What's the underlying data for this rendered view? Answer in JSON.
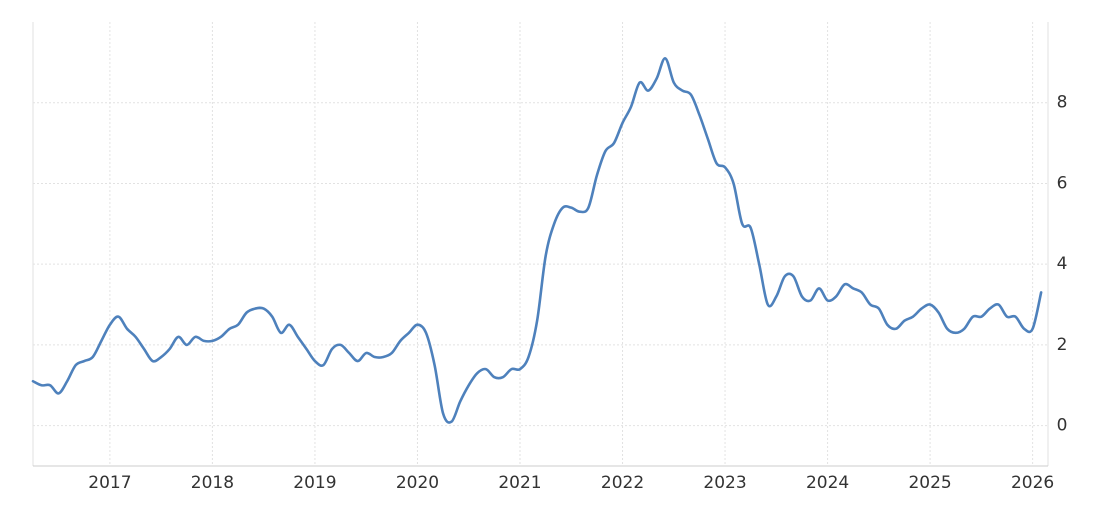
{
  "chart_data": {
    "type": "line",
    "x": [
      2016.25,
      2016.333,
      2016.417,
      2016.5,
      2016.583,
      2016.667,
      2016.75,
      2016.833,
      2016.917,
      2017.0,
      2017.083,
      2017.167,
      2017.25,
      2017.333,
      2017.417,
      2017.5,
      2017.583,
      2017.667,
      2017.75,
      2017.833,
      2017.917,
      2018.0,
      2018.083,
      2018.167,
      2018.25,
      2018.333,
      2018.417,
      2018.5,
      2018.583,
      2018.667,
      2018.75,
      2018.833,
      2018.917,
      2019.0,
      2019.083,
      2019.167,
      2019.25,
      2019.333,
      2019.417,
      2019.5,
      2019.583,
      2019.667,
      2019.75,
      2019.833,
      2019.917,
      2020.0,
      2020.083,
      2020.167,
      2020.25,
      2020.333,
      2020.417,
      2020.5,
      2020.583,
      2020.667,
      2020.75,
      2020.833,
      2020.917,
      2021.0,
      2021.083,
      2021.167,
      2021.25,
      2021.333,
      2021.417,
      2021.5,
      2021.583,
      2021.667,
      2021.75,
      2021.833,
      2021.917,
      2022.0,
      2022.083,
      2022.167,
      2022.25,
      2022.333,
      2022.417,
      2022.5,
      2022.583,
      2022.667,
      2022.75,
      2022.833,
      2022.917,
      2023.0,
      2023.083,
      2023.167,
      2023.25,
      2023.333,
      2023.417,
      2023.5,
      2023.583,
      2023.667,
      2023.75,
      2023.833,
      2023.917,
      2024.0,
      2024.083,
      2024.167,
      2024.25,
      2024.333,
      2024.417,
      2024.5,
      2024.583,
      2024.667,
      2024.75,
      2024.833,
      2024.917,
      2025.0,
      2025.083,
      2025.167,
      2025.25,
      2025.333,
      2025.417,
      2025.5,
      2025.583,
      2025.667,
      2025.75,
      2025.833,
      2025.917,
      2026.0,
      2026.083
    ],
    "series": [
      {
        "color": "#4e81bc",
        "values": [
          1.1,
          1.0,
          1.0,
          0.8,
          1.1,
          1.5,
          1.6,
          1.7,
          2.1,
          2.5,
          2.7,
          2.4,
          2.2,
          1.9,
          1.6,
          1.7,
          1.9,
          2.2,
          2.0,
          2.2,
          2.1,
          2.1,
          2.2,
          2.4,
          2.5,
          2.8,
          2.9,
          2.9,
          2.7,
          2.3,
          2.5,
          2.2,
          1.9,
          1.6,
          1.5,
          1.9,
          2.0,
          1.8,
          1.6,
          1.8,
          1.7,
          1.7,
          1.8,
          2.1,
          2.3,
          2.5,
          2.3,
          1.5,
          0.3,
          0.1,
          0.6,
          1.0,
          1.3,
          1.4,
          1.2,
          1.2,
          1.4,
          1.4,
          1.7,
          2.6,
          4.2,
          5.0,
          5.4,
          5.4,
          5.3,
          5.4,
          6.2,
          6.8,
          7.0,
          7.5,
          7.9,
          8.5,
          8.3,
          8.6,
          9.1,
          8.5,
          8.3,
          8.2,
          7.7,
          7.1,
          6.5,
          6.4,
          6.0,
          5.0,
          4.9,
          4.0,
          3.0,
          3.2,
          3.7,
          3.7,
          3.2,
          3.1,
          3.4,
          3.1,
          3.2,
          3.5,
          3.4,
          3.3,
          3.0,
          2.9,
          2.5,
          2.4,
          2.6,
          2.7,
          2.9,
          3.0,
          2.8,
          2.4,
          2.3,
          2.4,
          2.7,
          2.7,
          2.9,
          3.0,
          2.7,
          2.7,
          2.4,
          2.4,
          3.3
        ]
      }
    ],
    "xlim": [
      2016.25,
      2026.15
    ],
    "xticks": [
      2017,
      2018,
      2019,
      2020,
      2021,
      2022,
      2023,
      2024,
      2025,
      2026
    ],
    "ylim": [
      -1,
      10
    ],
    "yticks": [
      0,
      2,
      4,
      6,
      8
    ],
    "grid": true
  }
}
